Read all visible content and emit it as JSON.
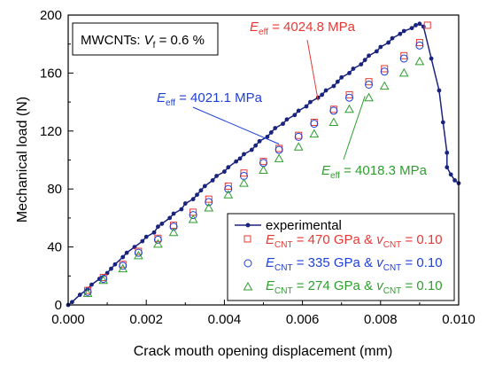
{
  "chart_data": {
    "type": "scatter",
    "xlabel": "Crack mouth opening displacement (mm)",
    "ylabel": "Mechanical load (N)",
    "xlim": [
      0,
      0.01
    ],
    "ylim": [
      0,
      200
    ],
    "x_ticks": [
      "0.000",
      "0.002",
      "0.004",
      "0.006",
      "0.008",
      "0.010"
    ],
    "y_ticks": [
      "0",
      "40",
      "80",
      "120",
      "160",
      "200"
    ],
    "info_box": {
      "prefix": "MWCNTs: ",
      "var": "V",
      "sub": "f",
      "suffix": " = 0.6 %"
    },
    "legend_position": "bottom-right",
    "series": [
      {
        "name": "experimental",
        "marker": "dot-line",
        "color": "#1a237e",
        "points": [
          [
            0.0,
            0
          ],
          [
            0.0001,
            2
          ],
          [
            0.0003,
            7
          ],
          [
            0.0005,
            11
          ],
          [
            0.0006,
            14
          ],
          [
            0.0008,
            18
          ],
          [
            0.001,
            22
          ],
          [
            0.0011,
            25
          ],
          [
            0.0012,
            28
          ],
          [
            0.0014,
            33
          ],
          [
            0.0015,
            36
          ],
          [
            0.0017,
            40
          ],
          [
            0.0019,
            44
          ],
          [
            0.002,
            47
          ],
          [
            0.0022,
            50
          ],
          [
            0.0023,
            54
          ],
          [
            0.0024,
            56
          ],
          [
            0.0026,
            60
          ],
          [
            0.0027,
            63
          ],
          [
            0.0029,
            66
          ],
          [
            0.003,
            70
          ],
          [
            0.0032,
            73
          ],
          [
            0.0033,
            76
          ],
          [
            0.0034,
            79
          ],
          [
            0.0035,
            82
          ],
          [
            0.0037,
            86
          ],
          [
            0.0038,
            89
          ],
          [
            0.004,
            92
          ],
          [
            0.0041,
            95
          ],
          [
            0.0043,
            99
          ],
          [
            0.0044,
            101
          ],
          [
            0.0045,
            104
          ],
          [
            0.0047,
            107
          ],
          [
            0.0048,
            110
          ],
          [
            0.0049,
            113
          ],
          [
            0.0051,
            116
          ],
          [
            0.0052,
            119
          ],
          [
            0.0053,
            122
          ],
          [
            0.0055,
            125
          ],
          [
            0.0056,
            128
          ],
          [
            0.0058,
            131
          ],
          [
            0.0059,
            134
          ],
          [
            0.0061,
            137
          ],
          [
            0.0062,
            140
          ],
          [
            0.0064,
            143
          ],
          [
            0.0065,
            145
          ],
          [
            0.0066,
            148
          ],
          [
            0.0068,
            151
          ],
          [
            0.0069,
            154
          ],
          [
            0.007,
            157
          ],
          [
            0.0072,
            160
          ],
          [
            0.0073,
            163
          ],
          [
            0.0075,
            166
          ],
          [
            0.0076,
            169
          ],
          [
            0.0077,
            172
          ],
          [
            0.0079,
            175
          ],
          [
            0.008,
            178
          ],
          [
            0.0082,
            181
          ],
          [
            0.0083,
            184
          ],
          [
            0.0085,
            187
          ],
          [
            0.0086,
            189
          ],
          [
            0.0088,
            191
          ],
          [
            0.0089,
            193
          ],
          [
            0.009,
            194
          ],
          [
            0.0091,
            192
          ],
          [
            0.0093,
            170
          ],
          [
            0.0095,
            148
          ],
          [
            0.0096,
            126
          ],
          [
            0.0097,
            105
          ],
          [
            0.0097,
            95
          ],
          [
            0.0098,
            90
          ],
          [
            0.0099,
            86
          ],
          [
            0.01,
            84
          ]
        ]
      },
      {
        "name": "E_CNT = 470 GPa & v_CNT = 0.10",
        "marker": "square",
        "color": "#e53935",
        "label": {
          "a_var": "E",
          "a_sub": "CNT",
          "mid": " = 470 GPa & ",
          "b_var": "v",
          "b_sub": "CNT",
          "end": " = 0.10"
        },
        "points": [
          [
            0.0005,
            10
          ],
          [
            0.0009,
            19
          ],
          [
            0.0014,
            28
          ],
          [
            0.0018,
            37
          ],
          [
            0.0023,
            46
          ],
          [
            0.0027,
            55
          ],
          [
            0.0032,
            64
          ],
          [
            0.0036,
            73
          ],
          [
            0.0041,
            82
          ],
          [
            0.0045,
            91
          ],
          [
            0.005,
            99
          ],
          [
            0.0054,
            108
          ],
          [
            0.0059,
            117
          ],
          [
            0.0063,
            126
          ],
          [
            0.0068,
            135
          ],
          [
            0.0072,
            145
          ],
          [
            0.0077,
            154
          ],
          [
            0.0081,
            163
          ],
          [
            0.0086,
            172
          ],
          [
            0.009,
            181
          ],
          [
            0.0092,
            193
          ]
        ]
      },
      {
        "name": "E_CNT = 335 GPa & v_CNT = 0.10",
        "marker": "circle",
        "color": "#1e3fd8",
        "label": {
          "a_var": "E",
          "a_sub": "CNT",
          "mid": " = 335 GPa & ",
          "b_var": "v",
          "b_sub": "CNT",
          "end": " = 0.10"
        },
        "points": [
          [
            0.0005,
            9
          ],
          [
            0.0009,
            18
          ],
          [
            0.0014,
            27
          ],
          [
            0.0018,
            36
          ],
          [
            0.0023,
            45
          ],
          [
            0.0027,
            54
          ],
          [
            0.0032,
            62
          ],
          [
            0.0036,
            71
          ],
          [
            0.0041,
            80
          ],
          [
            0.0045,
            89
          ],
          [
            0.005,
            98
          ],
          [
            0.0054,
            107
          ],
          [
            0.0059,
            116
          ],
          [
            0.0063,
            125
          ],
          [
            0.0068,
            134
          ],
          [
            0.0072,
            143
          ],
          [
            0.0077,
            152
          ],
          [
            0.0081,
            161
          ],
          [
            0.0086,
            170
          ],
          [
            0.009,
            179
          ]
        ]
      },
      {
        "name": "E_CNT = 274 GPa & v_CNT = 0.10",
        "marker": "triangle",
        "color": "#2e9e2e",
        "label": {
          "a_var": "E",
          "a_sub": "CNT",
          "mid": " = 274 GPa & ",
          "b_var": "v",
          "b_sub": "CNT",
          "end": " = 0.10"
        },
        "points": [
          [
            0.0005,
            8
          ],
          [
            0.0009,
            17
          ],
          [
            0.0014,
            25
          ],
          [
            0.0018,
            34
          ],
          [
            0.0023,
            42
          ],
          [
            0.0027,
            50
          ],
          [
            0.0032,
            59
          ],
          [
            0.0036,
            67
          ],
          [
            0.0041,
            76
          ],
          [
            0.0045,
            84
          ],
          [
            0.005,
            93
          ],
          [
            0.0054,
            101
          ],
          [
            0.0059,
            109
          ],
          [
            0.0063,
            118
          ],
          [
            0.0068,
            126
          ],
          [
            0.0072,
            135
          ],
          [
            0.0077,
            143
          ],
          [
            0.0081,
            151
          ],
          [
            0.0086,
            160
          ],
          [
            0.009,
            168
          ]
        ]
      }
    ],
    "annotations": [
      {
        "var": "E",
        "sub": "eff",
        "text": " = 4024.8 MPa",
        "color": "#e53935",
        "point": [
          0.0064,
          141
        ]
      },
      {
        "var": "E",
        "sub": "eff",
        "text": " = 4021.1 MPa",
        "color": "#1e3fd8",
        "point": [
          0.0054,
          111
        ]
      },
      {
        "var": "E",
        "sub": "eff",
        "text": " = 4018.3 MPa",
        "color": "#2e9e2e",
        "point": [
          0.0076,
          144
        ]
      }
    ]
  }
}
